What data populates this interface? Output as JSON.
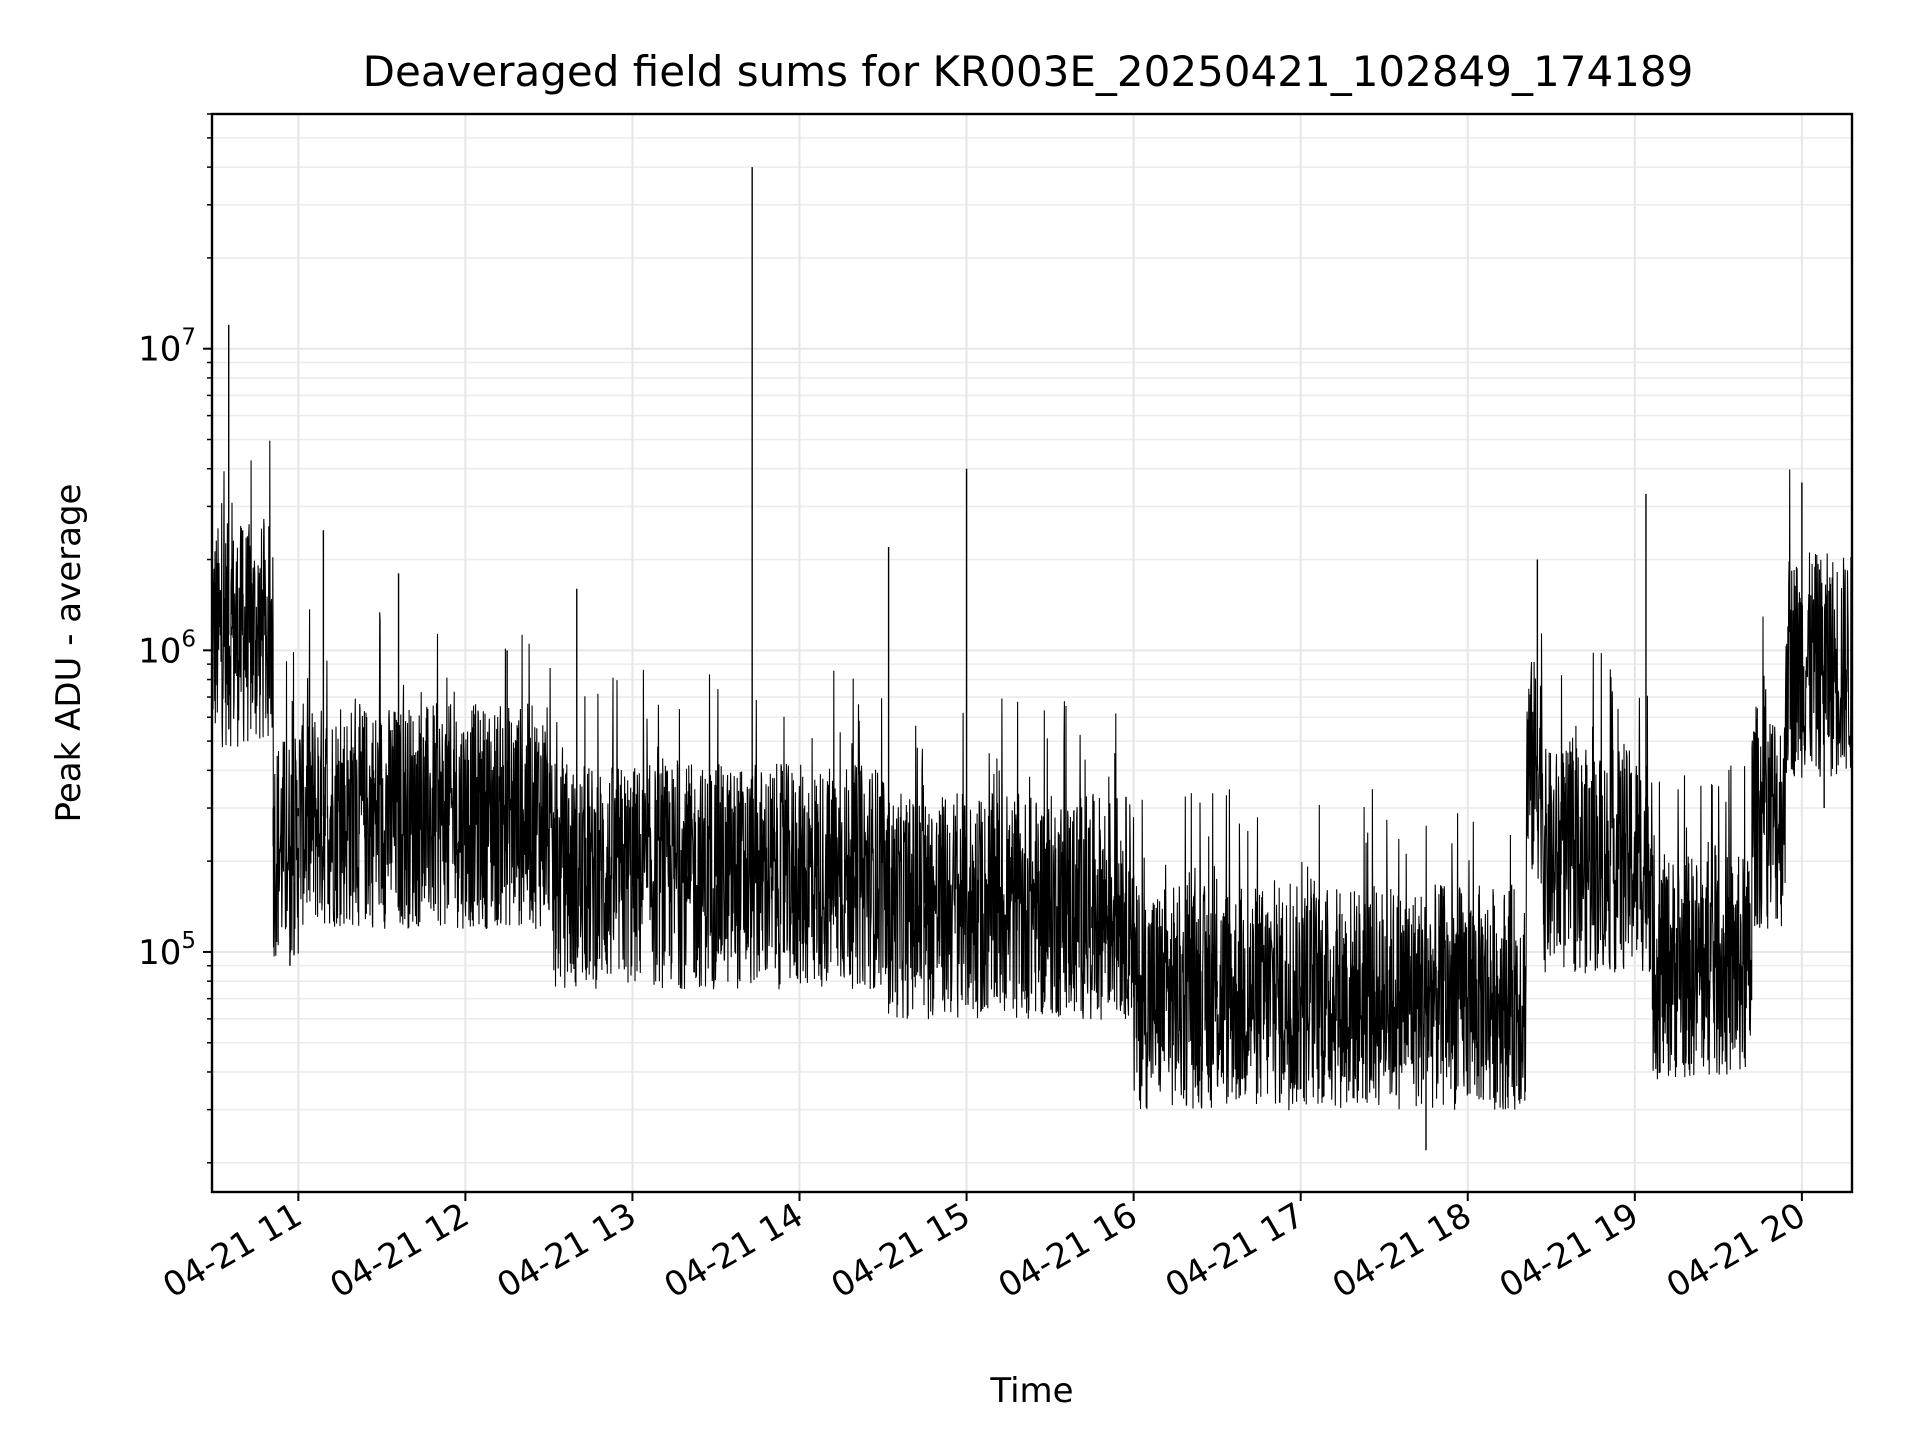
{
  "chart_data": {
    "type": "line",
    "title": "Deaveraged field sums for KR003E_20250421_102849_174189",
    "xlabel": "Time",
    "ylabel": "Peak ADU - average",
    "yscale": "log",
    "ylim": [
      16000,
      60000000
    ],
    "xlim": [
      "2025-04-21 10:29",
      "2025-04-21 20:18"
    ],
    "grid": "both",
    "legend": "none",
    "line_color": "#000000",
    "x_ticks": [
      "04-21 11",
      "04-21 12",
      "04-21 13",
      "04-21 14",
      "04-21 15",
      "04-21 16",
      "04-21 17",
      "04-21 18",
      "04-21 19",
      "04-21 20"
    ],
    "x_tick_times": [
      "2025-04-21 11:00",
      "2025-04-21 12:00",
      "2025-04-21 13:00",
      "2025-04-21 14:00",
      "2025-04-21 15:00",
      "2025-04-21 16:00",
      "2025-04-21 17:00",
      "2025-04-21 18:00",
      "2025-04-21 19:00",
      "2025-04-21 20:00"
    ],
    "y_ticks": [
      {
        "base": "10",
        "exp": "5",
        "value": 100000
      },
      {
        "base": "10",
        "exp": "6",
        "value": 1000000
      },
      {
        "base": "10",
        "exp": "7",
        "value": 10000000
      }
    ],
    "series": [
      {
        "x": [
          "2025-04-21 10:29",
          "2025-04-21 10:32",
          "2025-04-21 10:35",
          "2025-04-21 10:36",
          "2025-04-21 10:40",
          "2025-04-21 10:43",
          "2025-04-21 10:46",
          "2025-04-21 10:48",
          "2025-04-21 10:51",
          "2025-04-21 10:54",
          "2025-04-21 10:57",
          "2025-04-21 11:00",
          "2025-04-21 11:09",
          "2025-04-21 11:18",
          "2025-04-21 11:27",
          "2025-04-21 11:36",
          "2025-04-21 11:45",
          "2025-04-21 11:54",
          "2025-04-21 12:03",
          "2025-04-21 12:15",
          "2025-04-21 12:25",
          "2025-04-21 12:30",
          "2025-04-21 12:40",
          "2025-04-21 12:49",
          "2025-04-21 13:00",
          "2025-04-21 13:10",
          "2025-04-21 13:20",
          "2025-04-21 13:30",
          "2025-04-21 13:40",
          "2025-04-21 13:43",
          "2025-04-21 13:50",
          "2025-04-21 14:00",
          "2025-04-21 14:10",
          "2025-04-21 14:20",
          "2025-04-21 14:32",
          "2025-04-21 14:45",
          "2025-04-21 15:00",
          "2025-04-21 15:15",
          "2025-04-21 15:30",
          "2025-04-21 15:45",
          "2025-04-21 16:00",
          "2025-04-21 16:15",
          "2025-04-21 16:30",
          "2025-04-21 16:45",
          "2025-04-21 17:00",
          "2025-04-21 17:15",
          "2025-04-21 17:30",
          "2025-04-21 17:45",
          "2025-04-21 18:00",
          "2025-04-21 18:15",
          "2025-04-21 18:25",
          "2025-04-21 18:35",
          "2025-04-21 18:45",
          "2025-04-21 19:00",
          "2025-04-21 19:04",
          "2025-04-21 19:15",
          "2025-04-21 19:30",
          "2025-04-21 19:45",
          "2025-04-21 19:55",
          "2025-04-21 20:00",
          "2025-04-21 20:08",
          "2025-04-21 20:18"
        ],
        "y": [
          800000,
          1500000,
          12000000,
          1200000,
          2500000,
          1800000,
          1000000,
          1600000,
          300000,
          180000,
          90000,
          300000,
          2500000,
          350000,
          400000,
          1800000,
          350000,
          500000,
          300000,
          1000000,
          250000,
          200000,
          1600000,
          150000,
          200000,
          180000,
          150000,
          400000,
          200000,
          40000000,
          150000,
          180000,
          160000,
          140000,
          2200000,
          120000,
          4000000,
          110000,
          150000,
          120000,
          180000,
          70000,
          80000,
          70000,
          60000,
          55000,
          50000,
          22000,
          60000,
          55000,
          2000000,
          250000,
          200000,
          250000,
          3300000,
          120000,
          80000,
          150000,
          1200000,
          3600000,
          300000,
          1000000
        ]
      }
    ]
  }
}
